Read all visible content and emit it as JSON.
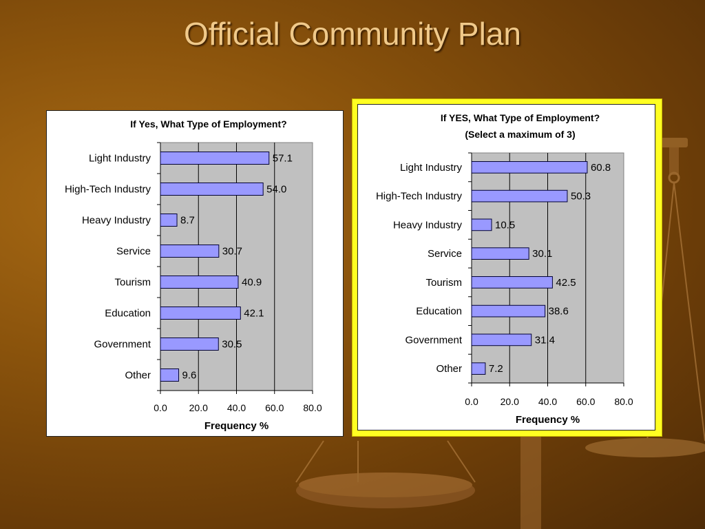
{
  "slide": {
    "title": "Official Community Plan"
  },
  "chart_data": [
    {
      "type": "bar",
      "orientation": "horizontal",
      "title": "If Yes, What Type of Employment?",
      "xlabel": "Frequency %",
      "ylabel": "",
      "xlim": [
        0,
        80
      ],
      "xticks": [
        "0.0",
        "20.0",
        "40.0",
        "60.0",
        "80.0"
      ],
      "grid": true,
      "categories": [
        "Light Industry",
        "High-Tech Industry",
        "Heavy Industry",
        "Service",
        "Tourism",
        "Education",
        "Government",
        "Other"
      ],
      "values": [
        57.1,
        54.0,
        8.7,
        30.7,
        40.9,
        42.1,
        30.5,
        9.6
      ],
      "labels": [
        "57.1",
        "54.0",
        "8.7",
        "30.7",
        "40.9",
        "42.1",
        "30.5",
        "9.6"
      ],
      "bar_color": "#9999ff",
      "plot_bg": "#c0c0c0"
    },
    {
      "type": "bar",
      "orientation": "horizontal",
      "title": "If YES, What Type of Employment?",
      "subtitle": "(Select a maximum of 3)",
      "xlabel": "Frequency %",
      "ylabel": "",
      "xlim": [
        0,
        80
      ],
      "xticks": [
        "0.0",
        "20.0",
        "40.0",
        "60.0",
        "80.0"
      ],
      "grid": true,
      "categories": [
        "Light Industry",
        "High-Tech Industry",
        "Heavy Industry",
        "Service",
        "Tourism",
        "Education",
        "Government",
        "Other"
      ],
      "values": [
        60.8,
        50.3,
        10.5,
        30.1,
        42.5,
        38.6,
        31.4,
        7.2
      ],
      "labels": [
        "60.8",
        "50.3",
        "10.5",
        "30.1",
        "42.5",
        "38.6",
        "31.4",
        "7.2"
      ],
      "bar_color": "#9999ff",
      "plot_bg": "#c0c0c0",
      "highlighted": true,
      "highlight_color": "#ffff22"
    }
  ]
}
